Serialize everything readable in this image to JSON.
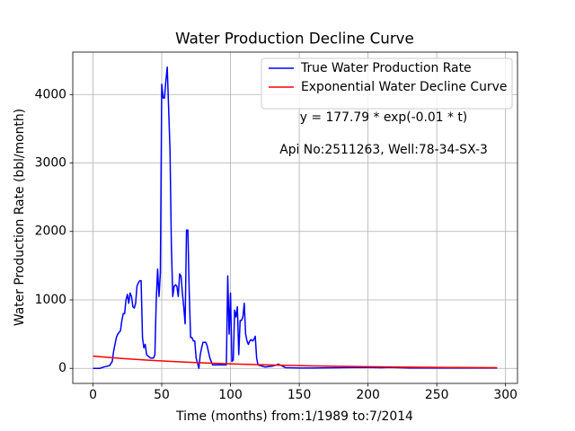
{
  "chart_data": {
    "type": "line",
    "title": "Water Production Decline Curve",
    "xlabel": "Time (months) from:1/1989 to:7/2014",
    "ylabel": "Water Production Rate (bbl/month)",
    "annotations": [
      "y = 177.79 * exp(-0.01 * t)",
      "Api No:2511263, Well:78-34-SX-3"
    ],
    "xlim": [
      -14.7,
      308.7
    ],
    "ylim": [
      -220,
      4620
    ],
    "xticks": [
      0,
      50,
      100,
      150,
      200,
      250,
      300
    ],
    "yticks": [
      0,
      1000,
      2000,
      3000,
      4000
    ],
    "grid": true,
    "legend": "upper right",
    "series": [
      {
        "name": "True Water Production Rate",
        "color": "#0000ff",
        "x": [
          0,
          5,
          8,
          12,
          14,
          15,
          17,
          18,
          20,
          21,
          22,
          23,
          24,
          25,
          26,
          27,
          28,
          29,
          30,
          31,
          32,
          33,
          34,
          35,
          36,
          37,
          38,
          39,
          40,
          42,
          44,
          45,
          46,
          47,
          48,
          49,
          50,
          51,
          52,
          53,
          54,
          55,
          56,
          57,
          58,
          59,
          60,
          61,
          62,
          63,
          64,
          65,
          66,
          67,
          68,
          69,
          70,
          71,
          72,
          73,
          74,
          75,
          77,
          78,
          79,
          80,
          82,
          83,
          85,
          87,
          90,
          95,
          97,
          98,
          99,
          100,
          101,
          102,
          103,
          104,
          105,
          106,
          107,
          108,
          109,
          110,
          111,
          112,
          113,
          114,
          115,
          116,
          117,
          118,
          119,
          120,
          125,
          130,
          135,
          137,
          140,
          150,
          160,
          180,
          200,
          210,
          215,
          230,
          250,
          270,
          294
        ],
        "values": [
          0,
          0,
          20,
          40,
          100,
          250,
          450,
          500,
          550,
          700,
          800,
          800,
          1000,
          1080,
          950,
          1100,
          1050,
          900,
          880,
          950,
          1200,
          1250,
          1280,
          1280,
          450,
          300,
          350,
          200,
          180,
          150,
          150,
          200,
          1000,
          1450,
          1050,
          1400,
          4150,
          3950,
          3950,
          4200,
          4400,
          3800,
          3200,
          1800,
          1050,
          1200,
          1220,
          1200,
          1050,
          1380,
          1350,
          1100,
          900,
          650,
          2020,
          2020,
          1100,
          450,
          450,
          400,
          400,
          150,
          0,
          200,
          300,
          380,
          380,
          330,
          150,
          50,
          50,
          50,
          50,
          1350,
          500,
          1100,
          100,
          120,
          850,
          750,
          900,
          200,
          700,
          700,
          750,
          950,
          500,
          400,
          350,
          400,
          420,
          400,
          420,
          470,
          150,
          50,
          20,
          30,
          60,
          40,
          10,
          5,
          5,
          10,
          15,
          10,
          15,
          5,
          5,
          5,
          5
        ]
      },
      {
        "name": "Exponential Water Decline Curve",
        "color": "#ff0000",
        "x": [
          0,
          20,
          40,
          60,
          80,
          100,
          120,
          140,
          160,
          180,
          200,
          220,
          240,
          260,
          280,
          294
        ],
        "values": [
          177.8,
          145.6,
          119.2,
          97.6,
          79.9,
          65.4,
          53.5,
          43.8,
          35.9,
          29.4,
          24.1,
          19.7,
          16.1,
          13.2,
          10.8,
          9.4
        ]
      }
    ]
  }
}
